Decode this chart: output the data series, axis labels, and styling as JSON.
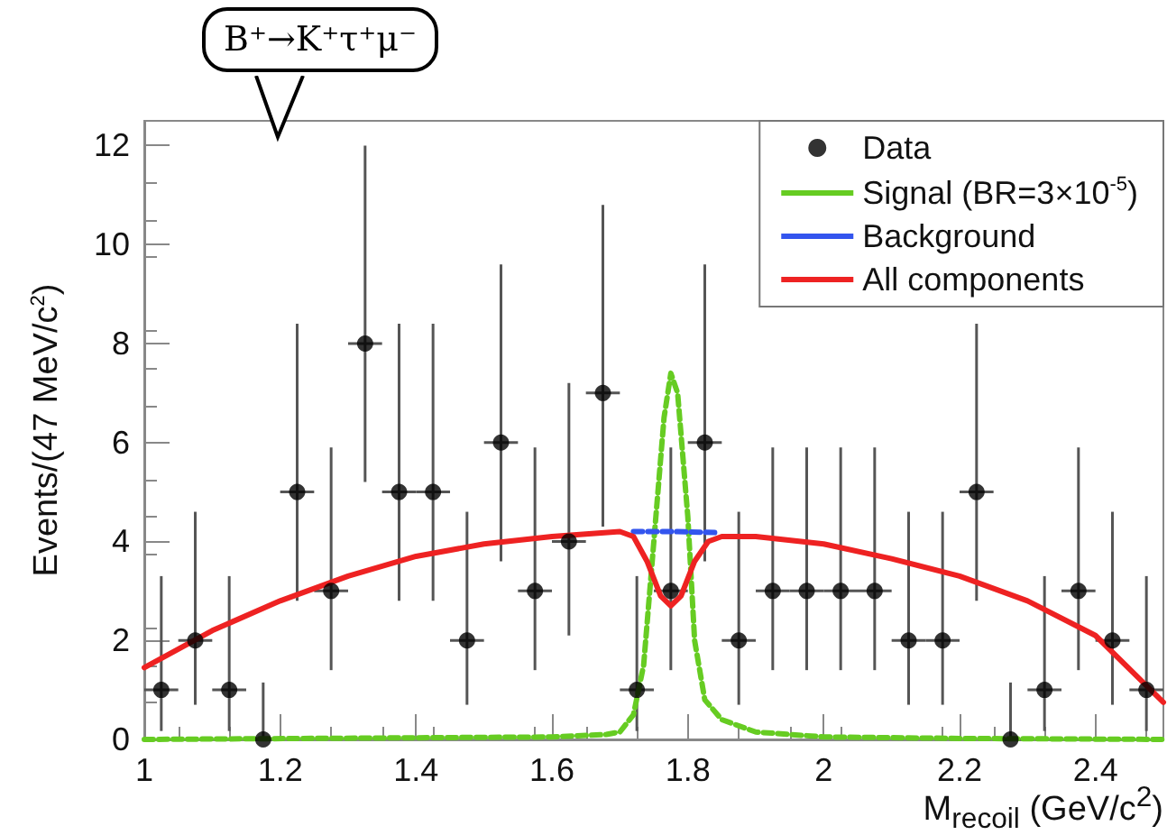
{
  "chart_data": {
    "type": "scatter",
    "xlabel": "M$_{recoil}$ (GeV/c$^{2}$)",
    "ylabel": "Events/(47 MeV/c$^{2}$)",
    "annotations": [
      "B⁺→K⁺τ⁺μ⁻"
    ],
    "xlim": [
      1,
      2.5
    ],
    "xticks": [
      1,
      1.2,
      1.4,
      1.6,
      1.8,
      2,
      2.2,
      2.4
    ],
    "ylim": [
      0,
      12.5
    ],
    "yticks": [
      0,
      2,
      4,
      6,
      8,
      10,
      12
    ],
    "grid": false,
    "legend": "top right",
    "series": [
      {
        "name": "Data",
        "color": "#000000",
        "marker": "circle",
        "x": [
          1.025,
          1.075,
          1.125,
          1.175,
          1.225,
          1.275,
          1.325,
          1.375,
          1.425,
          1.475,
          1.525,
          1.575,
          1.625,
          1.675,
          1.725,
          1.775,
          1.825,
          1.875,
          1.925,
          1.975,
          2.025,
          2.075,
          2.125,
          2.175,
          2.225,
          2.275,
          2.325,
          2.375,
          2.425,
          2.475
        ],
        "values": [
          1,
          2,
          1,
          0,
          5,
          3,
          8,
          5,
          5,
          2,
          6,
          3,
          4,
          7,
          1,
          3,
          6,
          2,
          3,
          3,
          3,
          3,
          2,
          2,
          5,
          0,
          1,
          3,
          2,
          1
        ],
        "errors": [
          [
            0.17,
            3.3
          ],
          [
            0.7,
            4.6
          ],
          [
            0.17,
            3.3
          ],
          [
            0,
            1.15
          ],
          [
            2.8,
            8.4
          ],
          [
            1.4,
            5.9
          ],
          [
            5.2,
            12
          ],
          [
            2.8,
            8.4
          ],
          [
            2.8,
            8.4
          ],
          [
            0.7,
            4.6
          ],
          [
            3.6,
            9.6
          ],
          [
            1.4,
            5.9
          ],
          [
            2.1,
            7.2
          ],
          [
            4.3,
            10.8
          ],
          [
            0.17,
            3.3
          ],
          [
            1.4,
            5.9
          ],
          [
            3.6,
            9.6
          ],
          [
            0.7,
            4.6
          ],
          [
            1.4,
            5.9
          ],
          [
            1.4,
            5.9
          ],
          [
            1.4,
            5.9
          ],
          [
            1.4,
            5.9
          ],
          [
            0.7,
            4.6
          ],
          [
            0.7,
            4.6
          ],
          [
            2.8,
            8.4
          ],
          [
            0,
            1.15
          ],
          [
            0.17,
            3.3
          ],
          [
            1.4,
            5.9
          ],
          [
            0.7,
            4.6
          ],
          [
            0.17,
            3.3
          ]
        ],
        "xerrors": [
          0.025,
          0.025,
          0.025,
          0.025,
          0.025,
          0.025,
          0.025,
          0.025,
          0.025,
          0.025,
          0.025,
          0.025,
          0.025,
          0.025,
          0.025,
          0.025,
          0.025,
          0.025,
          0.025,
          0.025,
          0.025,
          0.025,
          0.025,
          0.025,
          0.025,
          0.025,
          0.025,
          0.025,
          0.025,
          0.025
        ]
      },
      {
        "name": "Signal (BR=3×10$^{-5}$)",
        "type": "line",
        "color": "#66cc22",
        "line_style": "dashed",
        "marker": "none",
        "x": [
          1,
          1.6,
          1.68,
          1.7,
          1.72,
          1.735,
          1.75,
          1.765,
          1.775,
          1.785,
          1.8,
          1.81,
          1.825,
          1.85,
          1.9,
          2,
          2.2,
          2.5
        ],
        "values": [
          0,
          0.05,
          0.1,
          0.15,
          0.5,
          1.5,
          4,
          6.5,
          7.4,
          7,
          4.5,
          2,
          0.8,
          0.4,
          0.15,
          0.05,
          0.02,
          0
        ]
      },
      {
        "name": "Background",
        "type": "line",
        "color": "#3355ee",
        "line_style": "dashed",
        "marker": "none",
        "x": [
          1.72,
          1.78,
          1.84
        ],
        "values": [
          4.2,
          4.2,
          4.18
        ]
      },
      {
        "name": "All components",
        "type": "line",
        "color": "#ee2222",
        "line_style": "solid",
        "marker": "none",
        "x": [
          1,
          1.1,
          1.2,
          1.3,
          1.4,
          1.5,
          1.6,
          1.7,
          1.72,
          1.74,
          1.76,
          1.775,
          1.79,
          1.81,
          1.83,
          1.85,
          1.9,
          2,
          2.1,
          2.2,
          2.3,
          2.4,
          2.5
        ],
        "values": [
          1.45,
          2.2,
          2.8,
          3.3,
          3.7,
          3.95,
          4.1,
          4.2,
          4.1,
          3.6,
          2.9,
          2.7,
          2.9,
          3.6,
          4.0,
          4.1,
          4.1,
          3.95,
          3.65,
          3.3,
          2.8,
          2.1,
          0.75
        ]
      }
    ]
  }
}
